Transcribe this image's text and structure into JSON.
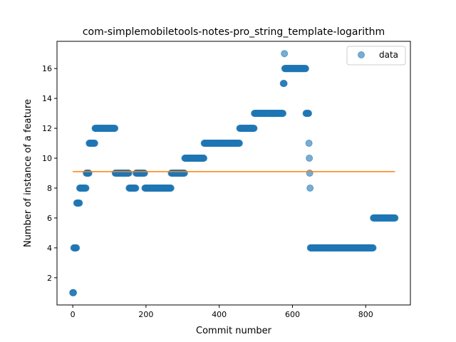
{
  "chart_data": {
    "type": "scatter",
    "title": "com-simplemobiletools-notes-pro_string_template-logarithm",
    "xlabel": "Commit number",
    "ylabel": "Number of instance of a feature",
    "xlim": [
      -43,
      922
    ],
    "ylim": [
      0.18,
      17.82
    ],
    "xticks": [
      0,
      200,
      400,
      600,
      800
    ],
    "yticks": [
      2,
      4,
      6,
      8,
      10,
      12,
      14,
      16
    ],
    "grid": false,
    "legend": {
      "placement": "top-right",
      "entries": [
        "data"
      ]
    },
    "colors": {
      "points": "#1f77b4",
      "trend": "#ff7f0e"
    },
    "series": [
      {
        "name": "data",
        "kind": "scatter",
        "segments": [
          {
            "x_start": 0,
            "x_end": 2,
            "y": 1
          },
          {
            "x_start": 3,
            "x_end": 10,
            "y": 4
          },
          {
            "x_start": 11,
            "x_end": 18,
            "y": 7
          },
          {
            "x_start": 19,
            "x_end": 36,
            "y": 8
          },
          {
            "x_start": 37,
            "x_end": 44,
            "y": 9
          },
          {
            "x_start": 45,
            "x_end": 60,
            "y": 11
          },
          {
            "x_start": 61,
            "x_end": 115,
            "y": 12
          },
          {
            "x_start": 116,
            "x_end": 153,
            "y": 9
          },
          {
            "x_start": 154,
            "x_end": 172,
            "y": 8
          },
          {
            "x_start": 173,
            "x_end": 196,
            "y": 9
          },
          {
            "x_start": 197,
            "x_end": 268,
            "y": 8
          },
          {
            "x_start": 269,
            "x_end": 305,
            "y": 9
          },
          {
            "x_start": 306,
            "x_end": 358,
            "y": 10
          },
          {
            "x_start": 359,
            "x_end": 455,
            "y": 11
          },
          {
            "x_start": 456,
            "x_end": 495,
            "y": 12
          },
          {
            "x_start": 496,
            "x_end": 574,
            "y": 13
          },
          {
            "x_start": 575,
            "x_end": 577,
            "y": 15
          },
          {
            "x_start": 578,
            "x_end": 578,
            "y": 17
          },
          {
            "x_start": 579,
            "x_end": 636,
            "y": 16
          },
          {
            "x_start": 637,
            "x_end": 644,
            "y": 13
          },
          {
            "x_start": 645,
            "x_end": 645,
            "y": 11
          },
          {
            "x_start": 646,
            "x_end": 646,
            "y": 10
          },
          {
            "x_start": 647,
            "x_end": 647,
            "y": 9
          },
          {
            "x_start": 648,
            "x_end": 648,
            "y": 8
          },
          {
            "x_start": 649,
            "x_end": 820,
            "y": 4
          },
          {
            "x_start": 821,
            "x_end": 880,
            "y": 6
          }
        ]
      },
      {
        "kind": "line",
        "x": [
          0,
          880
        ],
        "y": [
          9.1,
          9.1
        ]
      }
    ]
  }
}
